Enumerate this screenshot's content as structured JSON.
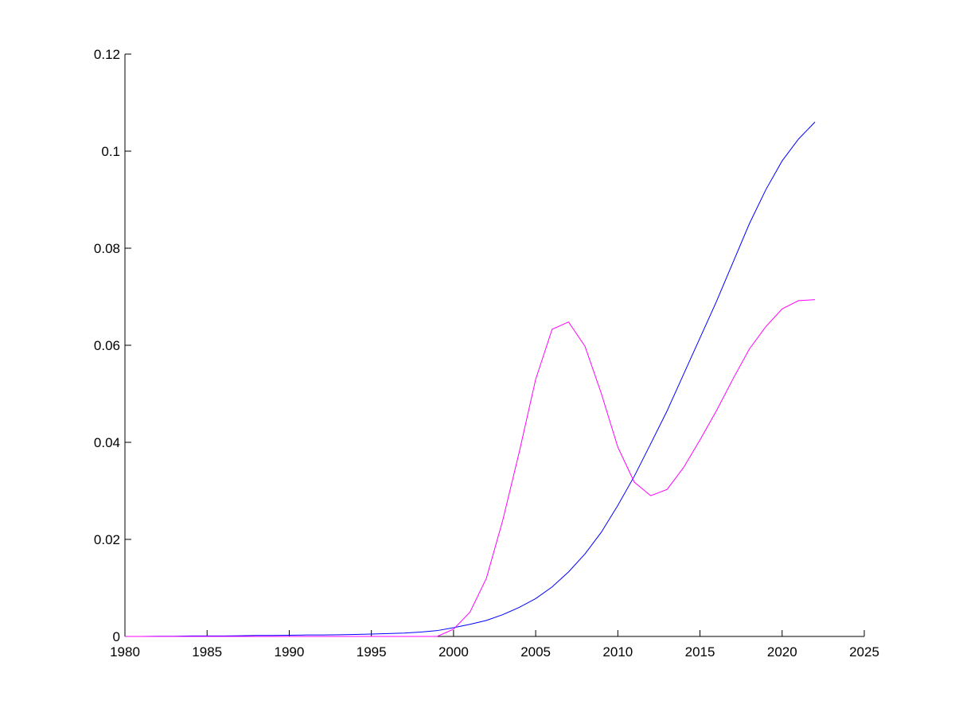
{
  "chart_data": {
    "type": "line",
    "x": [
      1980,
      1981,
      1982,
      1983,
      1984,
      1985,
      1986,
      1987,
      1988,
      1989,
      1990,
      1991,
      1992,
      1993,
      1994,
      1995,
      1996,
      1997,
      1998,
      1999,
      2000,
      2001,
      2002,
      2003,
      2004,
      2005,
      2006,
      2007,
      2008,
      2009,
      2010,
      2011,
      2012,
      2013,
      2014,
      2015,
      2016,
      2017,
      2018,
      2019,
      2020,
      2021,
      2022
    ],
    "series": [
      {
        "color": "#0000ff",
        "values": [
          0,
          0,
          5e-05,
          5e-05,
          0.0001,
          0.0001,
          0.0001,
          0.00015,
          0.0002,
          0.0002,
          0.00025,
          0.0003,
          0.0003,
          0.00035,
          0.0004,
          0.0005,
          0.0006,
          0.0007,
          0.0009,
          0.0012,
          0.0018,
          0.0025,
          0.0033,
          0.0045,
          0.006,
          0.0078,
          0.0102,
          0.0133,
          0.017,
          0.0215,
          0.027,
          0.033,
          0.0397,
          0.0465,
          0.054,
          0.0615,
          0.069,
          0.077,
          0.085,
          0.092,
          0.098,
          0.1025,
          0.106
        ]
      },
      {
        "color": "#ff00ff",
        "values": [
          0,
          0,
          0,
          0,
          0,
          0,
          0,
          0,
          0,
          0,
          0,
          0,
          0,
          0,
          0,
          0,
          0,
          0,
          0,
          0,
          0.0015,
          0.005,
          0.012,
          0.024,
          0.038,
          0.053,
          0.0633,
          0.0648,
          0.0598,
          0.05,
          0.039,
          0.0318,
          0.029,
          0.0303,
          0.0348,
          0.0405,
          0.0465,
          0.053,
          0.0592,
          0.0638,
          0.0675,
          0.0692,
          0.0694
        ]
      }
    ],
    "xlim": [
      1980,
      2025
    ],
    "xticks": [
      1980,
      1985,
      1990,
      1995,
      2000,
      2005,
      2010,
      2015,
      2020,
      2025
    ],
    "ylim": [
      0,
      0.12
    ],
    "yticks": [
      0,
      0.02,
      0.04,
      0.06,
      0.08,
      0.1,
      0.12
    ]
  }
}
